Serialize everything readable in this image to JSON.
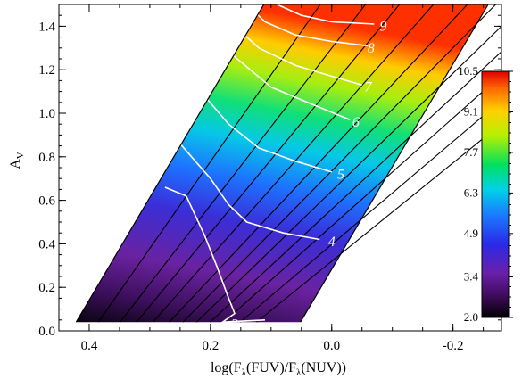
{
  "chart_data": {
    "type": "heatmap",
    "title": "",
    "xlabel": "log(F",
    "xlabel_sub1": "λ",
    "xlabel_mid": "(FUV)/F",
    "xlabel_sub2": "λ",
    "xlabel_end": "(NUV))",
    "ylabel": "A",
    "ylabel_sub": "V",
    "xlim": [
      0.45,
      -0.28
    ],
    "ylim": [
      0.0,
      1.5
    ],
    "x_ticks": [
      0.4,
      0.2,
      0.0,
      -0.2
    ],
    "x_tick_labels": [
      "0.4",
      "0.2",
      "0.0",
      "-0.2"
    ],
    "y_ticks": [
      0.0,
      0.2,
      0.4,
      0.6,
      0.8,
      1.0,
      1.2,
      1.4
    ],
    "y_tick_labels": [
      "0.0",
      "0.2",
      "0.4",
      "0.6",
      "0.8",
      "1.0",
      "1.2",
      "1.4"
    ],
    "colorbar": {
      "range": [
        2.0,
        10.5
      ],
      "ticks": [
        2.0,
        3.4,
        4.9,
        6.3,
        7.7,
        9.1,
        10.5
      ],
      "tick_labels": [
        "2.0",
        "3.4",
        "4.9",
        "6.3",
        "7.7",
        "9.1",
        "10.5"
      ]
    },
    "region": {
      "x_left_at_y0": 0.43,
      "x_right_at_y0": 0.06,
      "x_slope_per_unit_y": -0.212
    },
    "contours": [
      {
        "level": 3,
        "label": "3",
        "label_x": 0.16,
        "label_y": 0.03
      },
      {
        "level": 4,
        "label": "4",
        "label_x": 0.0,
        "label_y": 0.41
      },
      {
        "level": 5,
        "label": "5",
        "label_x": -0.015,
        "label_y": 0.72
      },
      {
        "level": 6,
        "label": "6",
        "label_x": -0.04,
        "label_y": 0.96
      },
      {
        "level": 7,
        "label": "7",
        "label_x": -0.06,
        "label_y": 1.12
      },
      {
        "level": 8,
        "label": "8",
        "label_x": -0.065,
        "label_y": 1.3
      },
      {
        "level": 9,
        "label": "9",
        "label_x": -0.085,
        "label_y": 1.4
      }
    ]
  }
}
